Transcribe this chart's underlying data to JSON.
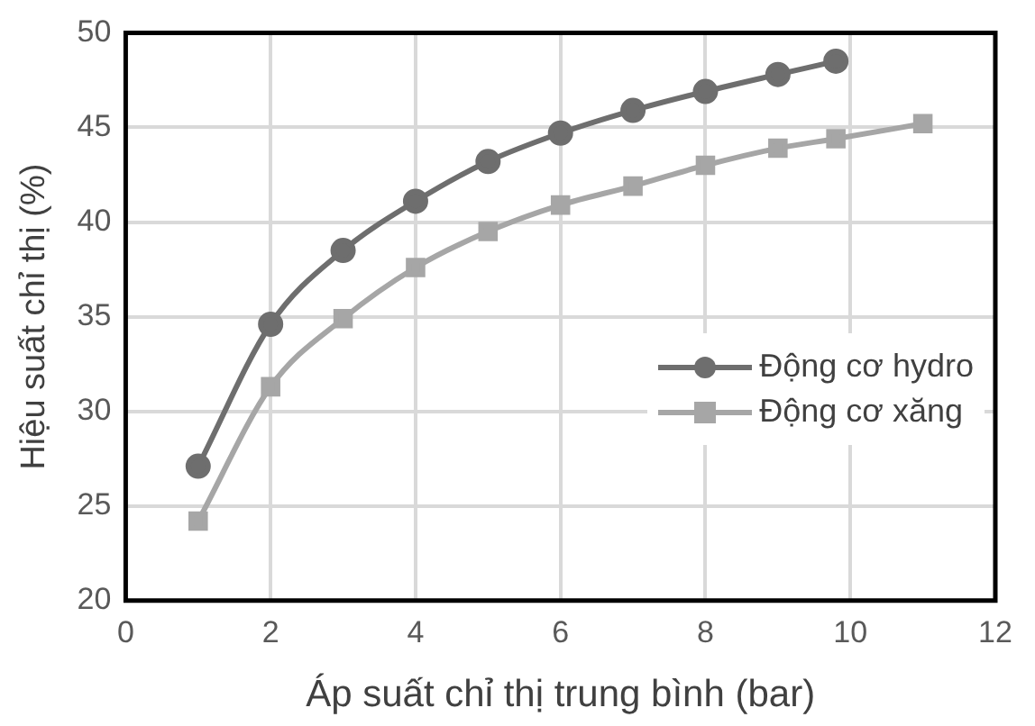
{
  "chart_data": {
    "type": "line",
    "xlabel": "Áp suất chỉ thị trung bình (bar)",
    "ylabel": "Hiệu suất chỉ thị (%)",
    "series": [
      {
        "name": "Động cơ hydro",
        "color": "#6e6e6e",
        "marker": "circle",
        "x": [
          1,
          2,
          3,
          4,
          5,
          6,
          7,
          8,
          9,
          9.8
        ],
        "values": [
          27.1,
          34.6,
          38.5,
          41.1,
          43.2,
          44.7,
          45.9,
          46.9,
          47.8,
          48.5
        ]
      },
      {
        "name": "Động cơ xăng",
        "color": "#a6a6a6",
        "marker": "square",
        "x": [
          1,
          2,
          3,
          4,
          5,
          6,
          7,
          8,
          9,
          9.8,
          11
        ],
        "values": [
          24.2,
          31.3,
          34.9,
          37.6,
          39.5,
          40.9,
          41.9,
          43.0,
          43.9,
          44.4,
          45.2
        ]
      }
    ],
    "xlim": [
      0,
      12
    ],
    "xticks": [
      0,
      2,
      4,
      6,
      8,
      10,
      12
    ],
    "ylim": [
      20,
      50
    ],
    "yticks": [
      20,
      25,
      30,
      35,
      40,
      45,
      50
    ],
    "grid": true,
    "legend": "right"
  }
}
